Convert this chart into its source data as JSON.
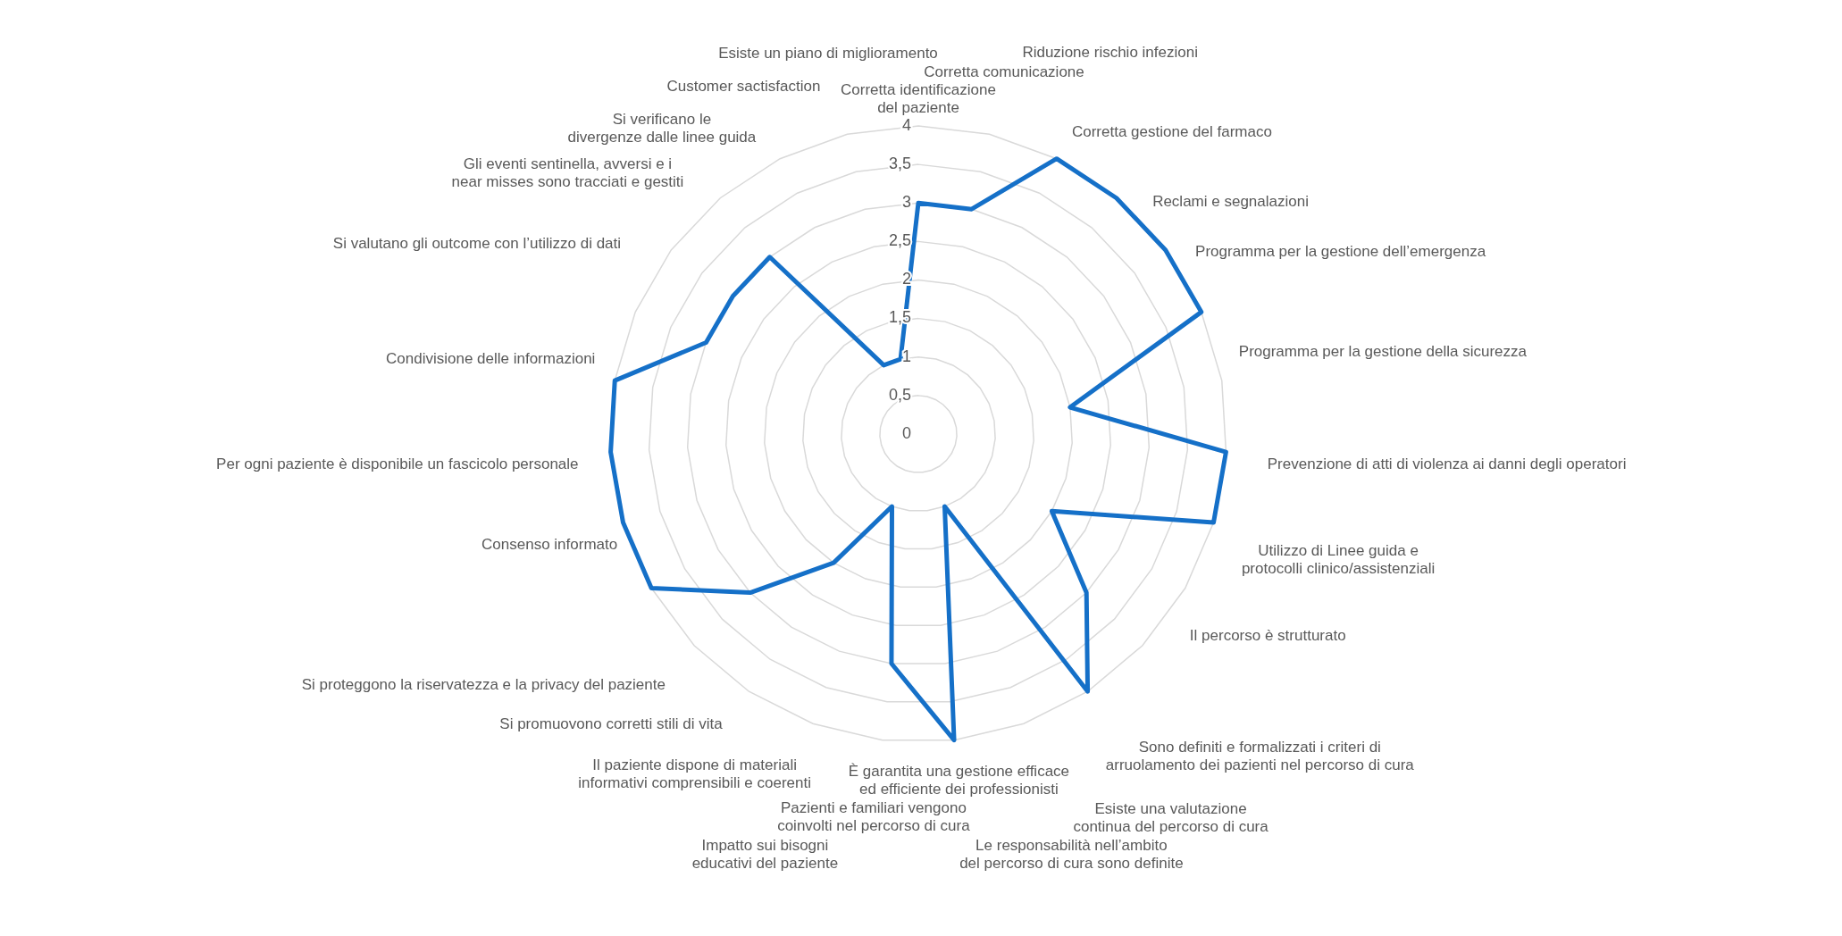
{
  "chart_data": {
    "type": "radar",
    "categories": [
      "Corretta identificazione del paziente",
      "Corretta comunicazione",
      "Riduzione rischio infezioni",
      "Corretta gestione del farmaco",
      "Reclami e segnalazioni",
      "Programma per la gestione dell’emergenza",
      "Programma per la gestione della sicurezza",
      "Prevenzione di atti di violenza ai danni degli operatori",
      "Utilizzo di Linee guida e protocolli clinico/assistenziali",
      "Il percorso è strutturato",
      "Sono definiti e formalizzati i criteri di arruolamento dei pazienti nel percorso di cura",
      "Esiste una valutazione continua del percorso di cura",
      "Le responsabilità nell’ambito del percorso di cura sono definite",
      "È garantita una gestione efficace ed efficiente dei professionisti",
      "Pazienti e familiari vengono coinvolti nel percorso di cura",
      "Impatto sui bisogni educativi del paziente",
      "Il paziente dispone di materiali informativi comprensibili e coerenti",
      "Si promuovono corretti stili di vita",
      "Si proteggono la riservatezza e la privacy del paziente",
      "Consenso informato",
      "Per ogni paziente è disponibile un fascicolo personale",
      "Condivisione delle informazioni",
      "Si valutano gli outcome con l’utilizzo di dati",
      "Gli eventi sentinella, avversi e i near misses sono tracciati e gestiti",
      "Si verificano le divergenze dalle linee guida",
      "Customer sactisfaction",
      "Esiste un piano di miglioramento"
    ],
    "series": [
      {
        "color": "#1570c8",
        "values": [
          3,
          3,
          4,
          4,
          4,
          4,
          2,
          4,
          4,
          2,
          3,
          4,
          1,
          4,
          3,
          1,
          2,
          3,
          4,
          4,
          4,
          4,
          3,
          3,
          3,
          1,
          1
        ]
      }
    ],
    "ylim": [
      0,
      4
    ],
    "yticks": [
      0,
      {
        "value": 0.5,
        "label": "0,5"
      },
      1,
      {
        "value": 1.5,
        "label": "1,5"
      },
      2,
      {
        "value": 2.5,
        "label": "2,5"
      },
      3,
      {
        "value": 3.5,
        "label": "3,5"
      },
      4
    ],
    "grid": true,
    "marker": "none"
  }
}
